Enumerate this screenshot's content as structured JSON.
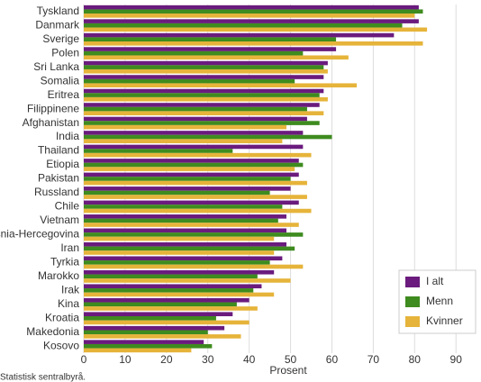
{
  "chart_data": {
    "type": "hbar",
    "categories": [
      "Tyskland",
      "Danmark",
      "Sverige",
      "Polen",
      "Sri Lanka",
      "Somalia",
      "Eritrea",
      "Filippinene",
      "Afghanistan",
      "India",
      "Thailand",
      "Etiopia",
      "Pakistan",
      "Russland",
      "Chile",
      "Vietnam",
      "Bosnia-Hercegovina",
      "Iran",
      "Tyrkia",
      "Marokko",
      "Irak",
      "Kina",
      "Kroatia",
      "Makedonia",
      "Kosovo"
    ],
    "series": [
      {
        "name": "I alt",
        "color": "#6a1b7d",
        "values": [
          81,
          81,
          75,
          61,
          59,
          58,
          58,
          57,
          54,
          53,
          53,
          52,
          52,
          50,
          52,
          49,
          49,
          49,
          48,
          46,
          43,
          40,
          36,
          34,
          29
        ]
      },
      {
        "name": "Menn",
        "color": "#3e8b1f",
        "values": [
          82,
          77,
          61,
          53,
          58,
          51,
          57,
          54,
          57,
          60,
          36,
          53,
          50,
          45,
          48,
          47,
          53,
          51,
          45,
          42,
          41,
          37,
          32,
          30,
          31
        ]
      },
      {
        "name": "Kvinner",
        "color": "#e6b43a",
        "values": [
          80,
          83,
          82,
          64,
          59,
          66,
          59,
          58,
          49,
          48,
          55,
          51,
          54,
          54,
          55,
          52,
          46,
          46,
          53,
          50,
          46,
          42,
          40,
          38,
          26
        ]
      }
    ],
    "xlabel": "Prosent",
    "xlim": [
      0,
      93
    ],
    "xticks": [
      0,
      10,
      20,
      30,
      40,
      50,
      60,
      70,
      80,
      90
    ],
    "grid": true,
    "legend": "lower right",
    "source": "Statistisk sentralbyrå."
  }
}
